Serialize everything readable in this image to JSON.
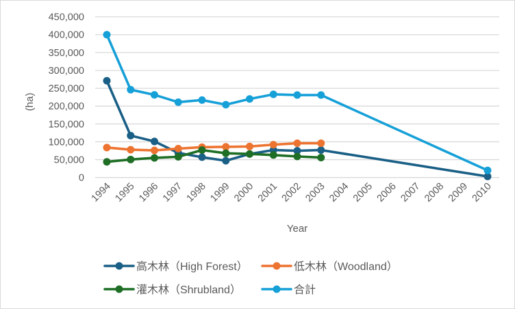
{
  "chart_data": {
    "type": "line",
    "xlabel": "Year",
    "ylabel": "(ha)",
    "categories": [
      "1994",
      "1995",
      "1996",
      "1997",
      "1998",
      "1999",
      "2000",
      "2001",
      "2002",
      "2003",
      "2004",
      "2005",
      "2006",
      "2007",
      "2008",
      "2009",
      "2010"
    ],
    "ylim": [
      0,
      450000
    ],
    "yticks": [
      "0",
      "50,000",
      "100,000",
      "150,000",
      "200,000",
      "250,000",
      "300,000",
      "350,000",
      "400,000",
      "450,000"
    ],
    "grid": true,
    "legend_position": "bottom",
    "series": [
      {
        "name": "高木林（High Forest）",
        "color": "#1a5f86",
        "values": [
          271000,
          117500,
          101000,
          69000,
          57000,
          47000,
          66000,
          77000,
          75000,
          77000,
          null,
          null,
          null,
          null,
          null,
          null,
          3000
        ]
      },
      {
        "name": "低木林（Woodland）",
        "color": "#ed7330",
        "values": [
          84000,
          78000,
          76000,
          81000,
          85000,
          86000,
          87000,
          92000,
          96000,
          96000,
          null,
          null,
          null,
          null,
          null,
          null,
          null
        ]
      },
      {
        "name": "灌木林（Shrubland）",
        "color": "#1e6e25",
        "values": [
          44000,
          50500,
          55000,
          58000,
          77000,
          68000,
          66000,
          63000,
          59000,
          56000,
          null,
          null,
          null,
          null,
          null,
          null,
          null
        ]
      },
      {
        "name": "合計",
        "color": "#16a0d8",
        "values": [
          400000,
          246000,
          231600,
          211000,
          217000,
          204000,
          220000,
          233000,
          231000,
          231000,
          null,
          null,
          null,
          null,
          null,
          null,
          20000
        ]
      }
    ]
  }
}
